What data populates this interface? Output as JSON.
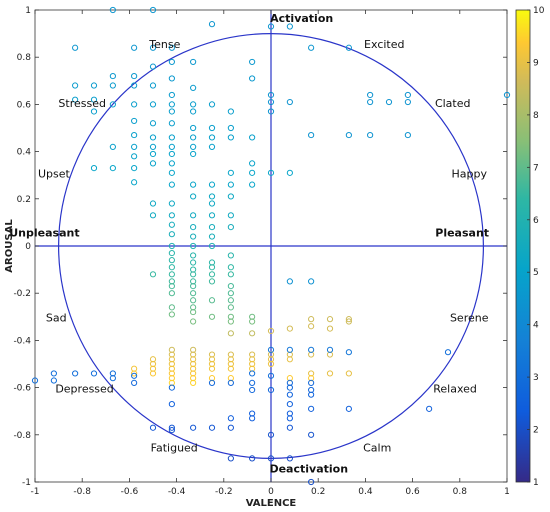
{
  "chart_data": {
    "type": "scatter",
    "title": "",
    "xlabel": "VALENCE",
    "ylabel": "AROUSAL",
    "xlim": [
      -1,
      1
    ],
    "ylim": [
      -1,
      1
    ],
    "xticks": [
      "-1",
      "-0.8",
      "-0.6",
      "-0.4",
      "-0.2",
      "0",
      "0.2",
      "0.4",
      "0.6",
      "0.8",
      "1"
    ],
    "yticks": [
      "-1",
      "-0.8",
      "-0.6",
      "-0.4",
      "-0.2",
      "0",
      "0.2",
      "0.4",
      "0.6",
      "0.8",
      "1"
    ],
    "colorbar": {
      "range": [
        1,
        10
      ],
      "ticks": [
        "1",
        "2",
        "3",
        "4",
        "5",
        "6",
        "7",
        "8",
        "9",
        "10"
      ],
      "colormap": "parula"
    },
    "circle": {
      "cx": 0,
      "cy": 0,
      "r": 0.9
    },
    "axes_lines": true,
    "annotations": [
      {
        "text": "Activation",
        "x": 0.13,
        "y": 0.95,
        "bold": true
      },
      {
        "text": "Deactivation",
        "x": 0.16,
        "y": -0.96,
        "bold": true
      },
      {
        "text": "Unpleasant",
        "x": -0.96,
        "y": 0.04,
        "bold": true
      },
      {
        "text": "Pleasant",
        "x": 0.81,
        "y": 0.04,
        "bold": true
      },
      {
        "text": "Tense",
        "x": -0.45,
        "y": 0.84,
        "bold": false
      },
      {
        "text": "Excited",
        "x": 0.48,
        "y": 0.84,
        "bold": false
      },
      {
        "text": "Stressed",
        "x": -0.8,
        "y": 0.59,
        "bold": false
      },
      {
        "text": "Clated",
        "x": 0.77,
        "y": 0.59,
        "bold": false
      },
      {
        "text": "Upset",
        "x": -0.92,
        "y": 0.29,
        "bold": false
      },
      {
        "text": "Happy",
        "x": 0.84,
        "y": 0.29,
        "bold": false
      },
      {
        "text": "Sad",
        "x": -0.91,
        "y": -0.32,
        "bold": false
      },
      {
        "text": "Serene",
        "x": 0.84,
        "y": -0.32,
        "bold": false
      },
      {
        "text": "Depressed",
        "x": -0.79,
        "y": -0.62,
        "bold": false
      },
      {
        "text": "Relaxed",
        "x": 0.78,
        "y": -0.62,
        "bold": false
      },
      {
        "text": "Fatigued",
        "x": -0.41,
        "y": -0.87,
        "bold": false
      },
      {
        "text": "Calm",
        "x": 0.45,
        "y": -0.87,
        "bold": false
      }
    ],
    "points": [
      [
        -0.67,
        1.0,
        4.5
      ],
      [
        -0.5,
        1.0,
        4.5
      ],
      [
        -0.25,
        0.94,
        4.5
      ],
      [
        0.0,
        0.93,
        4.5
      ],
      [
        0.08,
        0.93,
        4.5
      ],
      [
        -0.83,
        0.84,
        4.5
      ],
      [
        -0.58,
        0.84,
        4.5
      ],
      [
        -0.5,
        0.84,
        4.5
      ],
      [
        -0.42,
        0.84,
        4.5
      ],
      [
        0.17,
        0.84,
        4.5
      ],
      [
        0.33,
        0.84,
        4.5
      ],
      [
        -0.5,
        0.76,
        4.6
      ],
      [
        -0.42,
        0.78,
        4.6
      ],
      [
        -0.33,
        0.78,
        4.6
      ],
      [
        -0.08,
        0.78,
        4.6
      ],
      [
        -0.67,
        0.72,
        4.6
      ],
      [
        -0.58,
        0.72,
        4.6
      ],
      [
        -0.42,
        0.71,
        4.6
      ],
      [
        -0.08,
        0.71,
        4.6
      ],
      [
        -0.83,
        0.68,
        4.7
      ],
      [
        -0.75,
        0.68,
        4.7
      ],
      [
        -0.67,
        0.68,
        4.7
      ],
      [
        -0.58,
        0.68,
        4.7
      ],
      [
        -0.5,
        0.68,
        4.7
      ],
      [
        -0.33,
        0.67,
        4.7
      ],
      [
        -0.42,
        0.64,
        4.7
      ],
      [
        0.0,
        0.64,
        4.4
      ],
      [
        0.42,
        0.64,
        4.4
      ],
      [
        0.58,
        0.64,
        4.4
      ],
      [
        1.0,
        0.64,
        4.4
      ],
      [
        -0.83,
        0.62,
        4.8
      ],
      [
        -0.75,
        0.62,
        4.8
      ],
      [
        -0.67,
        0.6,
        4.8
      ],
      [
        -0.58,
        0.6,
        4.8
      ],
      [
        -0.5,
        0.6,
        4.8
      ],
      [
        -0.42,
        0.6,
        4.8
      ],
      [
        -0.33,
        0.6,
        4.8
      ],
      [
        -0.25,
        0.6,
        4.8
      ],
      [
        0.0,
        0.61,
        4.4
      ],
      [
        0.08,
        0.61,
        4.4
      ],
      [
        0.42,
        0.61,
        4.4
      ],
      [
        0.5,
        0.61,
        4.4
      ],
      [
        0.58,
        0.61,
        4.4
      ],
      [
        -0.75,
        0.57,
        4.8
      ],
      [
        -0.42,
        0.57,
        4.8
      ],
      [
        -0.33,
        0.57,
        4.8
      ],
      [
        -0.17,
        0.57,
        4.8
      ],
      [
        0.0,
        0.57,
        4.4
      ],
      [
        -0.58,
        0.53,
        4.8
      ],
      [
        -0.5,
        0.52,
        4.8
      ],
      [
        -0.42,
        0.52,
        4.8
      ],
      [
        -0.33,
        0.5,
        4.8
      ],
      [
        -0.25,
        0.5,
        4.8
      ],
      [
        -0.17,
        0.5,
        4.8
      ],
      [
        -0.58,
        0.47,
        4.9
      ],
      [
        -0.5,
        0.46,
        4.9
      ],
      [
        -0.42,
        0.46,
        4.9
      ],
      [
        -0.33,
        0.46,
        4.9
      ],
      [
        -0.25,
        0.46,
        4.9
      ],
      [
        -0.17,
        0.46,
        4.9
      ],
      [
        -0.08,
        0.46,
        4.9
      ],
      [
        0.17,
        0.47,
        4.4
      ],
      [
        0.33,
        0.47,
        4.4
      ],
      [
        0.42,
        0.47,
        4.4
      ],
      [
        0.58,
        0.47,
        4.4
      ],
      [
        -0.67,
        0.42,
        4.9
      ],
      [
        -0.58,
        0.42,
        4.9
      ],
      [
        -0.5,
        0.42,
        4.9
      ],
      [
        -0.42,
        0.42,
        4.9
      ],
      [
        -0.33,
        0.42,
        4.9
      ],
      [
        -0.25,
        0.42,
        4.9
      ],
      [
        -0.5,
        0.39,
        5.0
      ],
      [
        -0.42,
        0.39,
        5.0
      ],
      [
        -0.33,
        0.39,
        5.0
      ],
      [
        -0.58,
        0.38,
        5.0
      ],
      [
        -0.5,
        0.35,
        5.0
      ],
      [
        -0.42,
        0.35,
        5.0
      ],
      [
        -0.08,
        0.35,
        5.0
      ],
      [
        -0.75,
        0.33,
        5.1
      ],
      [
        -0.67,
        0.33,
        5.1
      ],
      [
        -0.58,
        0.33,
        5.1
      ],
      [
        -0.42,
        0.31,
        5.1
      ],
      [
        -0.17,
        0.31,
        5.1
      ],
      [
        -0.08,
        0.31,
        5.1
      ],
      [
        0.0,
        0.31,
        5.1
      ],
      [
        0.08,
        0.31,
        5.1
      ],
      [
        -0.58,
        0.27,
        5.1
      ],
      [
        -0.42,
        0.26,
        5.1
      ],
      [
        -0.33,
        0.26,
        5.1
      ],
      [
        -0.25,
        0.26,
        5.1
      ],
      [
        -0.17,
        0.26,
        5.1
      ],
      [
        -0.08,
        0.26,
        5.1
      ],
      [
        -0.33,
        0.21,
        5.3
      ],
      [
        -0.25,
        0.21,
        5.3
      ],
      [
        -0.17,
        0.21,
        5.3
      ],
      [
        -0.5,
        0.18,
        5.3
      ],
      [
        -0.42,
        0.18,
        5.3
      ],
      [
        -0.25,
        0.18,
        5.3
      ],
      [
        -0.5,
        0.13,
        5.4
      ],
      [
        -0.42,
        0.13,
        5.4
      ],
      [
        -0.33,
        0.13,
        5.4
      ],
      [
        -0.25,
        0.13,
        5.4
      ],
      [
        -0.17,
        0.13,
        5.4
      ],
      [
        -0.42,
        0.09,
        5.6
      ],
      [
        -0.33,
        0.08,
        5.6
      ],
      [
        -0.25,
        0.08,
        5.6
      ],
      [
        -0.17,
        0.08,
        5.6
      ],
      [
        -0.42,
        0.05,
        5.7
      ],
      [
        -0.33,
        0.04,
        5.7
      ],
      [
        -0.25,
        0.04,
        5.7
      ],
      [
        -0.42,
        0.0,
        6.0
      ],
      [
        -0.33,
        0.0,
        6.0
      ],
      [
        -0.25,
        0.0,
        6.0
      ],
      [
        -0.42,
        -0.03,
        6.2
      ],
      [
        -0.33,
        -0.04,
        6.2
      ],
      [
        -0.17,
        -0.04,
        6.2
      ],
      [
        -0.42,
        -0.06,
        6.3
      ],
      [
        -0.33,
        -0.07,
        6.3
      ],
      [
        -0.25,
        -0.07,
        6.3
      ],
      [
        -0.42,
        -0.09,
        6.4
      ],
      [
        -0.33,
        -0.1,
        6.4
      ],
      [
        -0.25,
        -0.09,
        6.4
      ],
      [
        -0.17,
        -0.09,
        6.4
      ],
      [
        -0.5,
        -0.12,
        6.5
      ],
      [
        -0.42,
        -0.12,
        6.5
      ],
      [
        -0.33,
        -0.12,
        6.5
      ],
      [
        -0.25,
        -0.12,
        6.5
      ],
      [
        -0.17,
        -0.12,
        6.5
      ],
      [
        -0.42,
        -0.15,
        6.6
      ],
      [
        -0.33,
        -0.15,
        6.6
      ],
      [
        -0.25,
        -0.15,
        6.6
      ],
      [
        -0.42,
        -0.17,
        6.7
      ],
      [
        -0.33,
        -0.17,
        6.7
      ],
      [
        -0.17,
        -0.17,
        6.7
      ],
      [
        0.08,
        -0.15,
        4.3
      ],
      [
        0.17,
        -0.15,
        4.3
      ],
      [
        -0.42,
        -0.2,
        6.8
      ],
      [
        -0.33,
        -0.2,
        6.8
      ],
      [
        -0.17,
        -0.2,
        6.8
      ],
      [
        -0.33,
        -0.23,
        6.9
      ],
      [
        -0.25,
        -0.23,
        6.9
      ],
      [
        -0.17,
        -0.23,
        6.9
      ],
      [
        -0.42,
        -0.26,
        7.0
      ],
      [
        -0.33,
        -0.26,
        7.0
      ],
      [
        -0.17,
        -0.26,
        7.0
      ],
      [
        -0.42,
        -0.29,
        7.2
      ],
      [
        -0.33,
        -0.28,
        7.2
      ],
      [
        -0.25,
        -0.3,
        7.2
      ],
      [
        -0.17,
        -0.3,
        7.2
      ],
      [
        -0.08,
        -0.3,
        7.2
      ],
      [
        -0.33,
        -0.32,
        7.3
      ],
      [
        -0.17,
        -0.32,
        7.3
      ],
      [
        -0.08,
        -0.32,
        7.3
      ],
      [
        0.17,
        -0.31,
        8.6
      ],
      [
        0.25,
        -0.31,
        8.6
      ],
      [
        0.33,
        -0.31,
        8.6
      ],
      [
        0.33,
        -0.32,
        8.6
      ],
      [
        0.17,
        -0.34,
        8.7
      ],
      [
        0.08,
        -0.35,
        8.7
      ],
      [
        0.25,
        -0.35,
        8.7
      ],
      [
        0.0,
        -0.36,
        8.7
      ],
      [
        -0.17,
        -0.37,
        8.4
      ],
      [
        -0.08,
        -0.37,
        8.4
      ],
      [
        -0.42,
        -0.44,
        8.6
      ],
      [
        -0.33,
        -0.44,
        8.6
      ],
      [
        -0.42,
        -0.46,
        8.8
      ],
      [
        -0.33,
        -0.46,
        8.8
      ],
      [
        -0.25,
        -0.46,
        8.8
      ],
      [
        -0.17,
        -0.46,
        8.8
      ],
      [
        -0.08,
        -0.46,
        8.8
      ],
      [
        0.0,
        -0.46,
        8.8
      ],
      [
        0.08,
        -0.46,
        8.8
      ],
      [
        0.17,
        -0.46,
        8.8
      ],
      [
        0.25,
        -0.46,
        8.8
      ],
      [
        -0.5,
        -0.48,
        9.0
      ],
      [
        -0.42,
        -0.48,
        9.0
      ],
      [
        -0.33,
        -0.48,
        9.0
      ],
      [
        -0.25,
        -0.48,
        9.0
      ],
      [
        -0.17,
        -0.48,
        9.0
      ],
      [
        -0.08,
        -0.48,
        9.0
      ],
      [
        0.0,
        -0.48,
        9.0
      ],
      [
        0.08,
        -0.48,
        9.0
      ],
      [
        -0.5,
        -0.5,
        9.1
      ],
      [
        -0.42,
        -0.5,
        9.1
      ],
      [
        -0.33,
        -0.5,
        9.1
      ],
      [
        -0.25,
        -0.5,
        9.1
      ],
      [
        -0.17,
        -0.5,
        9.1
      ],
      [
        -0.08,
        -0.5,
        9.1
      ],
      [
        0.0,
        -0.5,
        9.1
      ],
      [
        -0.58,
        -0.52,
        9.2
      ],
      [
        -0.5,
        -0.52,
        9.2
      ],
      [
        -0.42,
        -0.52,
        9.2
      ],
      [
        -0.33,
        -0.52,
        9.2
      ],
      [
        -0.25,
        -0.52,
        9.2
      ],
      [
        -0.17,
        -0.52,
        9.2
      ],
      [
        -0.08,
        -0.52,
        9.2
      ],
      [
        -0.58,
        -0.54,
        9.3
      ],
      [
        -0.5,
        -0.54,
        9.3
      ],
      [
        -0.42,
        -0.54,
        9.3
      ],
      [
        -0.33,
        -0.54,
        9.3
      ],
      [
        0.17,
        -0.54,
        9.0
      ],
      [
        0.25,
        -0.54,
        9.0
      ],
      [
        0.33,
        -0.54,
        9.0
      ],
      [
        -0.42,
        -0.56,
        9.4
      ],
      [
        -0.33,
        -0.56,
        9.4
      ],
      [
        -0.25,
        -0.56,
        9.4
      ],
      [
        -0.17,
        -0.56,
        9.4
      ],
      [
        0.08,
        -0.56,
        9.4
      ],
      [
        0.17,
        -0.56,
        9.4
      ],
      [
        -0.42,
        -0.58,
        9.5
      ],
      [
        -0.33,
        -0.58,
        9.5
      ],
      [
        0.0,
        -0.44,
        3.3
      ],
      [
        0.08,
        -0.44,
        3.3
      ],
      [
        0.17,
        -0.44,
        3.3
      ],
      [
        0.25,
        -0.44,
        3.3
      ],
      [
        0.33,
        -0.45,
        3.3
      ],
      [
        0.75,
        -0.45,
        3.0
      ],
      [
        -0.92,
        -0.54,
        3.0
      ],
      [
        -0.83,
        -0.54,
        3.0
      ],
      [
        -0.75,
        -0.54,
        3.0
      ],
      [
        -0.67,
        -0.54,
        3.0
      ],
      [
        -0.92,
        -0.57,
        3.0
      ],
      [
        -1.0,
        -0.57,
        3.0
      ],
      [
        -0.67,
        -0.56,
        3.0
      ],
      [
        -0.58,
        -0.55,
        3.0
      ],
      [
        -0.08,
        -0.54,
        3.0
      ],
      [
        0.0,
        -0.55,
        3.0
      ],
      [
        -0.58,
        -0.58,
        2.8
      ],
      [
        -0.25,
        -0.58,
        2.8
      ],
      [
        -0.17,
        -0.58,
        2.8
      ],
      [
        -0.08,
        -0.58,
        2.8
      ],
      [
        0.08,
        -0.58,
        2.8
      ],
      [
        0.17,
        -0.58,
        2.8
      ],
      [
        -0.42,
        -0.6,
        2.7
      ],
      [
        -0.08,
        -0.61,
        2.7
      ],
      [
        0.0,
        -0.61,
        2.7
      ],
      [
        0.08,
        -0.6,
        2.7
      ],
      [
        0.17,
        -0.61,
        2.7
      ],
      [
        0.08,
        -0.63,
        2.6
      ],
      [
        0.17,
        -0.63,
        2.6
      ],
      [
        -0.42,
        -0.67,
        2.5
      ],
      [
        0.08,
        -0.67,
        2.5
      ],
      [
        0.17,
        -0.69,
        2.5
      ],
      [
        0.33,
        -0.69,
        2.5
      ],
      [
        0.67,
        -0.69,
        2.5
      ],
      [
        0.08,
        -0.71,
        2.4
      ],
      [
        -0.08,
        -0.71,
        2.4
      ],
      [
        -0.17,
        -0.73,
        2.4
      ],
      [
        0.08,
        -0.73,
        2.4
      ],
      [
        -0.08,
        -0.73,
        2.4
      ],
      [
        -0.5,
        -0.77,
        2.2
      ],
      [
        -0.42,
        -0.77,
        2.2
      ],
      [
        -0.33,
        -0.77,
        2.2
      ],
      [
        -0.25,
        -0.77,
        2.2
      ],
      [
        -0.17,
        -0.77,
        2.2
      ],
      [
        0.08,
        -0.77,
        2.2
      ],
      [
        -0.42,
        -0.78,
        2.2
      ],
      [
        0.0,
        -0.8,
        2.1
      ],
      [
        0.17,
        -0.8,
        2.1
      ],
      [
        -0.17,
        -0.9,
        2.0
      ],
      [
        -0.08,
        -0.9,
        2.0
      ],
      [
        0.0,
        -0.9,
        2.0
      ],
      [
        0.08,
        -0.9,
        2.0
      ],
      [
        0.17,
        -1.0,
        2.0
      ]
    ]
  }
}
